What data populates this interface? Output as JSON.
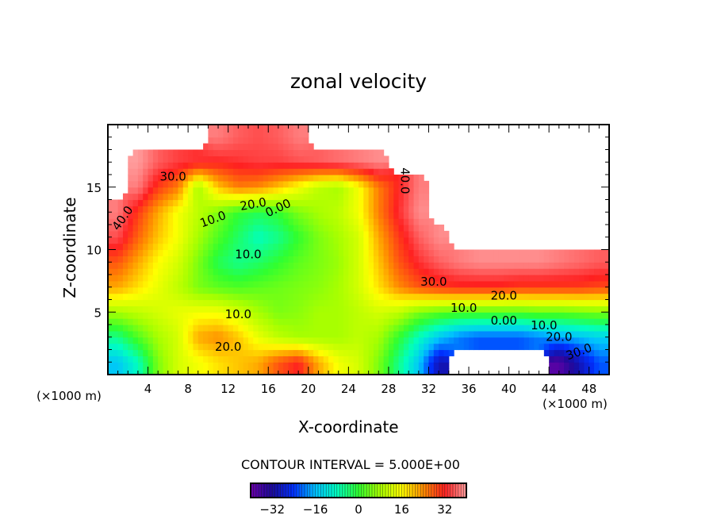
{
  "chart_data": {
    "type": "heatmap",
    "title": "zonal velocity",
    "xlabel": "X-coordinate",
    "ylabel": "Z-coordinate",
    "x_unit_left": "(×1000 m)",
    "x_unit_right": "(×1000 m)",
    "xlim": [
      0,
      50
    ],
    "ylim": [
      0,
      20
    ],
    "xticks": [
      4,
      8,
      12,
      16,
      20,
      24,
      28,
      32,
      36,
      40,
      44,
      48
    ],
    "yticks": [
      5,
      10,
      15
    ],
    "grid_x_centers": [
      1,
      3,
      5,
      7,
      9,
      11,
      13,
      15,
      17,
      19,
      21,
      23,
      25,
      27,
      29,
      31,
      33,
      35,
      37,
      39,
      41,
      43,
      45,
      47,
      49
    ],
    "grid_z_centers": [
      19,
      17,
      15,
      13,
      11,
      9,
      7,
      5,
      3,
      1
    ],
    "values": [
      [
        null,
        null,
        null,
        null,
        null,
        38,
        36,
        35,
        36,
        38,
        null,
        null,
        null,
        null,
        null,
        null,
        null,
        null,
        null,
        null,
        null,
        null,
        null,
        null,
        null
      ],
      [
        null,
        40,
        36,
        34,
        33,
        32,
        33,
        34,
        34,
        35,
        36,
        37,
        38,
        39,
        null,
        null,
        null,
        null,
        null,
        null,
        null,
        null,
        null,
        null,
        null
      ],
      [
        null,
        38,
        30,
        25,
        8,
        20,
        25,
        24,
        20,
        15,
        10,
        8,
        15,
        25,
        32,
        38,
        null,
        null,
        null,
        null,
        null,
        null,
        null,
        null,
        null
      ],
      [
        38,
        30,
        22,
        15,
        10,
        5,
        0,
        -2,
        0,
        5,
        8,
        10,
        15,
        25,
        33,
        39,
        null,
        null,
        null,
        null,
        null,
        null,
        null,
        null,
        null
      ],
      [
        35,
        27,
        20,
        15,
        8,
        2,
        -3,
        -8,
        -5,
        0,
        5,
        8,
        12,
        22,
        30,
        36,
        39,
        null,
        null,
        null,
        null,
        null,
        null,
        null,
        null
      ],
      [
        28,
        22,
        16,
        12,
        5,
        -2,
        -5,
        -3,
        0,
        3,
        5,
        7,
        12,
        20,
        28,
        33,
        36,
        38,
        39,
        39,
        39,
        39,
        38,
        37,
        36
      ],
      [
        22,
        18,
        14,
        10,
        5,
        3,
        2,
        3,
        4,
        5,
        6,
        8,
        12,
        18,
        24,
        28,
        30,
        31,
        31,
        31,
        30,
        30,
        30,
        30,
        29
      ],
      [
        8,
        10,
        12,
        14,
        15,
        15,
        12,
        8,
        5,
        6,
        8,
        8,
        10,
        12,
        10,
        5,
        3,
        2,
        2,
        2,
        2,
        3,
        3,
        4,
        5
      ],
      [
        -5,
        2,
        8,
        12,
        22,
        24,
        20,
        14,
        10,
        8,
        8,
        8,
        10,
        8,
        0,
        -8,
        -15,
        -20,
        -22,
        -22,
        -22,
        -20,
        -18,
        -16,
        -14
      ],
      [
        -15,
        -8,
        5,
        12,
        15,
        18,
        20,
        22,
        28,
        32,
        22,
        15,
        12,
        5,
        -5,
        -15,
        -30,
        null,
        null,
        null,
        null,
        null,
        -38,
        -30,
        -22
      ]
    ],
    "contour_labels": [
      {
        "text": "40.0",
        "x": 1.5,
        "z": 12.5,
        "angle": -55
      },
      {
        "text": "30.0",
        "x": 6.5,
        "z": 15.8,
        "angle": 0
      },
      {
        "text": "20.0",
        "x": 14.5,
        "z": 13.6,
        "angle": -10
      },
      {
        "text": "10.0",
        "x": 10.5,
        "z": 12.4,
        "angle": -20
      },
      {
        "text": "0.00",
        "x": 17,
        "z": 13.3,
        "angle": -25
      },
      {
        "text": "10.0",
        "x": 14,
        "z": 9.6,
        "angle": 0
      },
      {
        "text": "10.0",
        "x": 13,
        "z": 4.8,
        "angle": 0
      },
      {
        "text": "20.0",
        "x": 12,
        "z": 2.2,
        "angle": 0
      },
      {
        "text": "40.0",
        "x": 29.6,
        "z": 15.5,
        "angle": 90
      },
      {
        "text": "30.0",
        "x": 32.5,
        "z": 7.4,
        "angle": 0
      },
      {
        "text": "20.0",
        "x": 39.5,
        "z": 6.3,
        "angle": 0
      },
      {
        "text": "10.0",
        "x": 35.5,
        "z": 5.3,
        "angle": 0
      },
      {
        "text": "0.00",
        "x": 39.5,
        "z": 4.3,
        "angle": 0
      },
      {
        "text": "10.0",
        "x": 43.5,
        "z": 3.9,
        "angle": 0
      },
      {
        "text": "20.0",
        "x": 45,
        "z": 3,
        "angle": 0
      },
      {
        "text": "30.0",
        "x": 47,
        "z": 1.8,
        "angle": -20
      }
    ],
    "colorbar": {
      "title": "CONTOUR INTERVAL = 5.000E+00",
      "range": [
        -40,
        40
      ],
      "ticks": [
        -32,
        -16,
        0,
        16,
        32
      ],
      "tick_labels": [
        "−32",
        "−16",
        "0",
        "16",
        "32"
      ]
    },
    "colormap": [
      [
        -40,
        "#6a00a8"
      ],
      [
        -32,
        "#1a0a9a"
      ],
      [
        -24,
        "#0030ff"
      ],
      [
        -16,
        "#00c0ff"
      ],
      [
        -8,
        "#00ffc0"
      ],
      [
        0,
        "#30ff30"
      ],
      [
        8,
        "#a8ff00"
      ],
      [
        16,
        "#ffff00"
      ],
      [
        24,
        "#ff8c00"
      ],
      [
        32,
        "#ff2020"
      ],
      [
        40,
        "#ff9c9c"
      ]
    ]
  }
}
